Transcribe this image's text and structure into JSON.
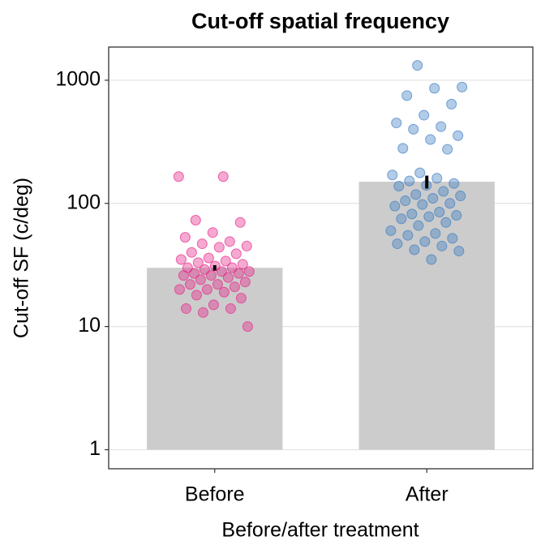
{
  "chart_data": {
    "type": "bar",
    "title": "Cut-off spatial frequency",
    "x_label": "Before/after treatment",
    "y_label": "Cut-off SF (c/deg)",
    "categories": [
      "Before",
      "After"
    ],
    "values": [
      30,
      150
    ],
    "errors": [
      1.5,
      18
    ],
    "color": "#cccccc",
    "points": [
      [
        165,
        165,
        73,
        70,
        58,
        53,
        49,
        47,
        45,
        44,
        40,
        39,
        36,
        35,
        34,
        33,
        32,
        31,
        30,
        30,
        29,
        28,
        28,
        27,
        27,
        26,
        26,
        25,
        24,
        23,
        22,
        22,
        21,
        20,
        20,
        19,
        18,
        17,
        15,
        14,
        14,
        13,
        10
      ],
      [
        1320,
        880,
        860,
        750,
        640,
        520,
        450,
        420,
        400,
        355,
        330,
        280,
        275,
        177,
        170,
        160,
        152,
        145,
        140,
        138,
        125,
        118,
        115,
        110,
        105,
        100,
        98,
        95,
        85,
        82,
        80,
        78,
        75,
        70,
        66,
        60,
        57,
        55,
        52,
        49,
        47,
        45,
        42,
        41,
        35
      ]
    ],
    "point_colors": [
      "#e7298a",
      "#3f7fc4"
    ],
    "log_scale": true,
    "grid": true,
    "ylim": [
      0.7,
      1860
    ],
    "yticks": [
      1,
      10,
      100,
      1000
    ]
  }
}
